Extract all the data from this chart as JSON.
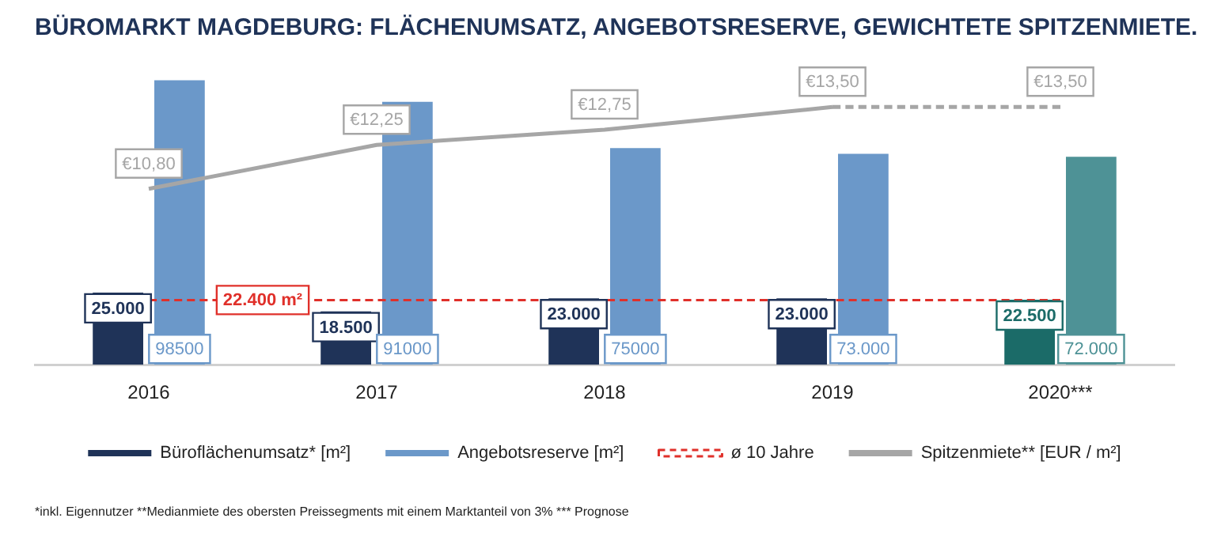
{
  "chart_data": {
    "type": "bar",
    "title": "BÜROMARKT MAGDEBURG: FLÄCHENUMSATZ, ANGEBOTSRESERVE, GEWICHTETE SPITZENMIETE.",
    "categories": [
      "2016",
      "2017",
      "2018",
      "2019",
      "2020***"
    ],
    "series": [
      {
        "name": "Büroflächenumsatz* [m²]",
        "color": "#1f3358",
        "colors": [
          "#1f3358",
          "#1f3358",
          "#1f3358",
          "#1f3358",
          "#1b6b68"
        ],
        "values": [
          25000,
          18500,
          23000,
          23000,
          22500
        ],
        "value_labels": [
          "25.000",
          "18.500",
          "23.000",
          "23.000",
          "22.500"
        ]
      },
      {
        "name": "Angebotsreserve [m²]",
        "color": "#6b98c9",
        "colors": [
          "#6b98c9",
          "#6b98c9",
          "#6b98c9",
          "#6b98c9",
          "#4e9296"
        ],
        "values": [
          98500,
          91000,
          75000,
          73000,
          72000
        ],
        "value_labels": [
          "98500",
          "91000",
          "75000",
          "73.000",
          "72.000"
        ]
      },
      {
        "name": "ø 10 Jahre",
        "type": "line",
        "line_style": "dashed",
        "color": "#e0302a",
        "values": [
          22400,
          22400,
          22400,
          22400,
          22400
        ]
      },
      {
        "name": "Spitzenmiete** [EUR / m²]",
        "type": "line",
        "line_style": "solid",
        "axis": "y2",
        "color": "#a6a6a6",
        "values": [
          10.8,
          12.25,
          12.75,
          13.5,
          null
        ],
        "value_labels": [
          "€10,80",
          "€12,25",
          "€12,75",
          "€13,50",
          null
        ]
      },
      {
        "type": "line",
        "line_style": "dashed",
        "axis": "y2",
        "color": "#a6a6a6",
        "values": [
          null,
          null,
          null,
          13.5,
          13.5
        ],
        "value_labels": [
          null,
          null,
          null,
          null,
          "€13,50"
        ]
      }
    ],
    "marker": "none",
    "legend": "bottom",
    "annotations": [
      {
        "text": "22.400 m²",
        "y": 22400
      },
      "*inkl. Eigennutzer **Medianmiete des obersten Preissegments mit einem Marktanteil von 3% *** Prognose"
    ]
  }
}
